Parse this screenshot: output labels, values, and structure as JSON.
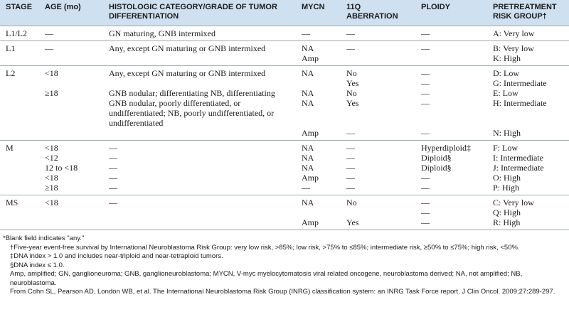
{
  "table": {
    "header": [
      "STAGE",
      "AGE (mo)",
      "HISTOLOGIC CATEGORY/GRADE OF TUMOR DIFFERENTIATION",
      "MYCN",
      "11Q ABERRATION",
      "PLOIDY",
      "PRETREATMENT RISK GROUP†"
    ],
    "groups": [
      {
        "rows": [
          [
            "L1/L2",
            "—",
            "GN maturing, GNB intermixed",
            "—",
            "—",
            "—",
            "A: Very low"
          ]
        ]
      },
      {
        "rows": [
          [
            "L1",
            "—",
            "Any, except GN maturing or GNB intermixed",
            "NA",
            "—",
            "—",
            "B: Very low"
          ],
          [
            null,
            null,
            null,
            "Amp",
            null,
            null,
            "K: High"
          ]
        ]
      },
      {
        "rows": [
          [
            "L2",
            "<18",
            "Any, except GN maturing or GNB intermixed",
            "NA",
            "No",
            "—",
            "D: Low"
          ],
          [
            null,
            null,
            null,
            null,
            "Yes",
            "—",
            "G: Intermediate"
          ],
          [
            null,
            "≥18",
            "GNB nodular; differentiating NB, differentiating",
            "NA",
            "No",
            "—",
            "E: Low"
          ],
          [
            null,
            null,
            "GNB nodular, poorly differentiated, or undifferentiated; NB, poorly undifferentiated, or undifferentiated",
            "NA",
            "Yes",
            "—",
            "H: Intermediate"
          ],
          [
            null,
            null,
            null,
            "Amp",
            "—",
            "—",
            "N: High"
          ]
        ]
      },
      {
        "rows": [
          [
            "M",
            "<18",
            "—",
            "NA",
            "—",
            "Hyperdiploid‡",
            "F: Low"
          ],
          [
            null,
            "<12",
            "—",
            "NA",
            "—",
            "Diploid§",
            "I: Intermediate"
          ],
          [
            null,
            "12 to <18",
            "—",
            "NA",
            "—",
            "Diploid§",
            "J: Intermediate"
          ],
          [
            null,
            "<18",
            "—",
            "Amp",
            "—",
            "—",
            "O: High"
          ],
          [
            null,
            "≥18",
            "—",
            "—",
            "—",
            "—",
            "P: High"
          ]
        ]
      },
      {
        "rows": [
          [
            "MS",
            "<18",
            "—",
            "NA",
            "No",
            "—",
            "C: Very low"
          ],
          [
            null,
            null,
            null,
            null,
            null,
            "—",
            "Q: High"
          ],
          [
            null,
            null,
            null,
            "Amp",
            "Yes",
            "—",
            "R: High"
          ]
        ]
      }
    ]
  },
  "footnotes": [
    "*Blank field indicates \"any.\"",
    "†Five-year event-free survival by International Neuroblastoma Risk Group: very low risk, >85%; low risk, >75% to ≤85%; intermediate risk, ≥50% to ≤75%; high risk, <50%.",
    "‡DNA index > 1.0 and includes near-triploid and near-tetraploid tumors.",
    "§DNA index ≤ 1.0.",
    "Amp, amplified; GN, ganglioneuroma; GNB, ganglioneuroblastoma; MYCN, V-myc myelocytomatosis viral related oncogene, neuroblastoma derived; NA, not amplified; NB, neuroblastoma.",
    "From Cohn SL, Pearson AD, London WB, et al. The International Neuroblastoma Risk Group (INRG) classification system: an INRG Task Force report. J Clin Oncol. 2009;27:289-297."
  ]
}
